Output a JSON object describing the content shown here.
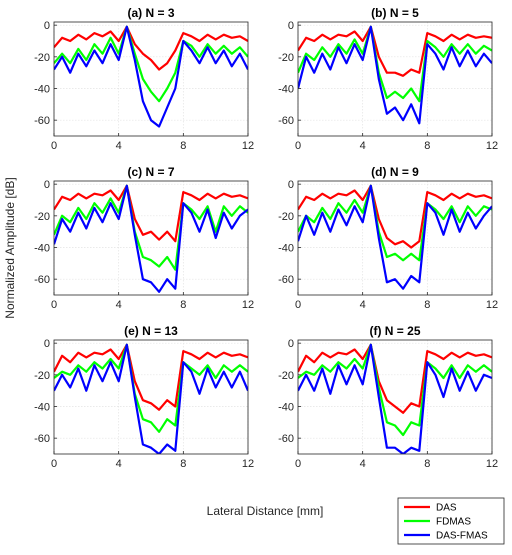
{
  "figure": {
    "ylabel": "Normalized Amplitude [dB]",
    "xlabel": "Lateral Distance [mm]"
  },
  "legend": {
    "placement": "bottom-right",
    "items": [
      {
        "label": "DAS",
        "color": "#ff0000"
      },
      {
        "label": "FDMAS",
        "color": "#00ff00"
      },
      {
        "label": "DAS-FMAS",
        "color": "#0000ff"
      }
    ]
  },
  "chart_data": [
    {
      "type": "line",
      "title": "(a) N = 3",
      "xlim": [
        0,
        12
      ],
      "ylim": [
        -70,
        2
      ],
      "xticks": [
        0,
        4,
        8,
        12
      ],
      "yticks": [
        0,
        -20,
        -40,
        -60
      ],
      "grid": true,
      "x": [
        0,
        0.5,
        1,
        1.5,
        2,
        2.5,
        3,
        3.5,
        4,
        4.5,
        5,
        5.5,
        6,
        6.5,
        7,
        7.5,
        8,
        8.5,
        9,
        9.5,
        10,
        10.5,
        11,
        11.5,
        12
      ],
      "series": [
        {
          "name": "DAS",
          "color": "#ff0000",
          "values": [
            -14,
            -8,
            -10,
            -6,
            -9,
            -5,
            -7,
            -4,
            -10,
            -1,
            -12,
            -18,
            -22,
            -28,
            -24,
            -16,
            -5,
            -7,
            -10,
            -6,
            -9,
            -6,
            -8,
            -7,
            -10
          ]
        },
        {
          "name": "FDMAS",
          "color": "#00ff00",
          "values": [
            -24,
            -18,
            -24,
            -15,
            -22,
            -12,
            -18,
            -8,
            -18,
            -1,
            -18,
            -34,
            -42,
            -48,
            -40,
            -30,
            -10,
            -13,
            -20,
            -12,
            -18,
            -13,
            -18,
            -14,
            -20
          ]
        },
        {
          "name": "DAS-FMAS",
          "color": "#0000ff",
          "values": [
            -28,
            -20,
            -30,
            -18,
            -26,
            -16,
            -24,
            -12,
            -22,
            -1,
            -22,
            -48,
            -60,
            -64,
            -52,
            -40,
            -10,
            -16,
            -24,
            -14,
            -24,
            -16,
            -26,
            -18,
            -28
          ]
        }
      ]
    },
    {
      "type": "line",
      "title": "(b) N = 5",
      "xlim": [
        0,
        12
      ],
      "ylim": [
        -70,
        2
      ],
      "xticks": [
        0,
        4,
        8,
        12
      ],
      "yticks": [
        0,
        -20,
        -40,
        -60
      ],
      "grid": true,
      "x": [
        0,
        0.5,
        1,
        1.5,
        2,
        2.5,
        3,
        3.5,
        4,
        4.5,
        5,
        5.5,
        6,
        6.5,
        7,
        7.5,
        8,
        8.5,
        9,
        9.5,
        10,
        10.5,
        11,
        11.5,
        12
      ],
      "series": [
        {
          "name": "DAS",
          "color": "#ff0000",
          "values": [
            -16,
            -8,
            -10,
            -6,
            -9,
            -6,
            -7,
            -4,
            -10,
            -1,
            -20,
            -30,
            -30,
            -32,
            -28,
            -30,
            -5,
            -7,
            -10,
            -6,
            -9,
            -6,
            -8,
            -7,
            -8
          ]
        },
        {
          "name": "FDMAS",
          "color": "#00ff00",
          "values": [
            -30,
            -18,
            -22,
            -14,
            -20,
            -12,
            -18,
            -9,
            -18,
            -1,
            -30,
            -46,
            -42,
            -46,
            -40,
            -48,
            -10,
            -14,
            -20,
            -12,
            -18,
            -12,
            -18,
            -13,
            -16
          ]
        },
        {
          "name": "DAS-FMAS",
          "color": "#0000ff",
          "values": [
            -40,
            -20,
            -30,
            -18,
            -28,
            -14,
            -24,
            -12,
            -22,
            -1,
            -34,
            -56,
            -52,
            -60,
            -50,
            -62,
            -12,
            -18,
            -28,
            -14,
            -26,
            -16,
            -26,
            -18,
            -24
          ]
        }
      ]
    },
    {
      "type": "line",
      "title": "(c) N = 7",
      "xlim": [
        0,
        12
      ],
      "ylim": [
        -70,
        2
      ],
      "xticks": [
        0,
        4,
        8,
        12
      ],
      "yticks": [
        0,
        -20,
        -40,
        -60
      ],
      "grid": true,
      "x": [
        0,
        0.5,
        1,
        1.5,
        2,
        2.5,
        3,
        3.5,
        4,
        4.5,
        5,
        5.5,
        6,
        6.5,
        7,
        7.5,
        8,
        8.5,
        9,
        9.5,
        10,
        10.5,
        11,
        11.5,
        12
      ],
      "series": [
        {
          "name": "DAS",
          "color": "#ff0000",
          "values": [
            -16,
            -8,
            -10,
            -6,
            -9,
            -6,
            -7,
            -4,
            -10,
            -1,
            -22,
            -32,
            -30,
            -35,
            -30,
            -36,
            -5,
            -7,
            -10,
            -6,
            -9,
            -6,
            -8,
            -7,
            -9
          ]
        },
        {
          "name": "FDMAS",
          "color": "#00ff00",
          "values": [
            -32,
            -20,
            -24,
            -15,
            -22,
            -12,
            -18,
            -9,
            -18,
            -1,
            -30,
            -46,
            -48,
            -52,
            -46,
            -54,
            -12,
            -16,
            -22,
            -14,
            -30,
            -14,
            -20,
            -14,
            -18
          ]
        },
        {
          "name": "DAS-FMAS",
          "color": "#0000ff",
          "values": [
            -38,
            -22,
            -30,
            -18,
            -28,
            -15,
            -24,
            -12,
            -22,
            -1,
            -32,
            -60,
            -62,
            -68,
            -60,
            -66,
            -12,
            -18,
            -30,
            -16,
            -34,
            -18,
            -28,
            -20,
            -16
          ]
        }
      ]
    },
    {
      "type": "line",
      "title": "(d) N = 9",
      "xlim": [
        0,
        12
      ],
      "ylim": [
        -70,
        2
      ],
      "xticks": [
        0,
        4,
        8,
        12
      ],
      "yticks": [
        0,
        -20,
        -40,
        -60
      ],
      "grid": true,
      "x": [
        0,
        0.5,
        1,
        1.5,
        2,
        2.5,
        3,
        3.5,
        4,
        4.5,
        5,
        5.5,
        6,
        6.5,
        7,
        7.5,
        8,
        8.5,
        9,
        9.5,
        10,
        10.5,
        11,
        11.5,
        12
      ],
      "series": [
        {
          "name": "DAS",
          "color": "#ff0000",
          "values": [
            -16,
            -8,
            -10,
            -6,
            -9,
            -6,
            -7,
            -4,
            -10,
            -1,
            -22,
            -34,
            -38,
            -36,
            -40,
            -36,
            -5,
            -7,
            -10,
            -6,
            -9,
            -6,
            -8,
            -7,
            -9
          ]
        },
        {
          "name": "FDMAS",
          "color": "#00ff00",
          "values": [
            -30,
            -20,
            -24,
            -15,
            -22,
            -12,
            -18,
            -10,
            -18,
            -1,
            -30,
            -46,
            -44,
            -48,
            -44,
            -48,
            -12,
            -16,
            -22,
            -14,
            -24,
            -14,
            -20,
            -14,
            -16
          ]
        },
        {
          "name": "DAS-FMAS",
          "color": "#0000ff",
          "values": [
            -36,
            -20,
            -32,
            -18,
            -30,
            -16,
            -26,
            -14,
            -24,
            -1,
            -34,
            -62,
            -60,
            -66,
            -58,
            -62,
            -12,
            -18,
            -32,
            -16,
            -30,
            -18,
            -28,
            -20,
            -14
          ]
        }
      ]
    },
    {
      "type": "line",
      "title": "(e) N = 13",
      "xlim": [
        0,
        12
      ],
      "ylim": [
        -70,
        2
      ],
      "xticks": [
        0,
        4,
        8,
        12
      ],
      "yticks": [
        0,
        -20,
        -40,
        -60
      ],
      "grid": true,
      "x": [
        0,
        0.5,
        1,
        1.5,
        2,
        2.5,
        3,
        3.5,
        4,
        4.5,
        5,
        5.5,
        6,
        6.5,
        7,
        7.5,
        8,
        8.5,
        9,
        9.5,
        10,
        10.5,
        11,
        11.5,
        12
      ],
      "series": [
        {
          "name": "DAS",
          "color": "#ff0000",
          "values": [
            -18,
            -8,
            -12,
            -6,
            -9,
            -6,
            -7,
            -4,
            -10,
            -1,
            -24,
            -36,
            -38,
            -42,
            -36,
            -40,
            -5,
            -7,
            -10,
            -6,
            -9,
            -6,
            -8,
            -7,
            -9
          ]
        },
        {
          "name": "FDMAS",
          "color": "#00ff00",
          "values": [
            -22,
            -18,
            -20,
            -14,
            -18,
            -12,
            -16,
            -10,
            -16,
            -1,
            -32,
            -48,
            -50,
            -56,
            -48,
            -52,
            -12,
            -16,
            -20,
            -14,
            -22,
            -14,
            -18,
            -14,
            -18
          ]
        },
        {
          "name": "DAS-FMAS",
          "color": "#0000ff",
          "values": [
            -30,
            -20,
            -28,
            -16,
            -30,
            -14,
            -24,
            -12,
            -24,
            -1,
            -34,
            -64,
            -66,
            -70,
            -64,
            -68,
            -12,
            -18,
            -32,
            -16,
            -28,
            -18,
            -28,
            -18,
            -30
          ]
        }
      ]
    },
    {
      "type": "line",
      "title": "(f) N = 25",
      "xlim": [
        0,
        12
      ],
      "ylim": [
        -70,
        2
      ],
      "xticks": [
        0,
        4,
        8,
        12
      ],
      "yticks": [
        0,
        -20,
        -40,
        -60
      ],
      "grid": true,
      "x": [
        0,
        0.5,
        1,
        1.5,
        2,
        2.5,
        3,
        3.5,
        4,
        4.5,
        5,
        5.5,
        6,
        6.5,
        7,
        7.5,
        8,
        8.5,
        9,
        9.5,
        10,
        10.5,
        11,
        11.5,
        12
      ],
      "series": [
        {
          "name": "DAS",
          "color": "#ff0000",
          "values": [
            -18,
            -8,
            -12,
            -6,
            -9,
            -6,
            -7,
            -4,
            -10,
            -1,
            -24,
            -36,
            -40,
            -44,
            -38,
            -40,
            -5,
            -7,
            -10,
            -6,
            -9,
            -6,
            -8,
            -7,
            -9
          ]
        },
        {
          "name": "FDMAS",
          "color": "#00ff00",
          "values": [
            -22,
            -18,
            -20,
            -14,
            -18,
            -12,
            -16,
            -10,
            -16,
            -1,
            -28,
            -50,
            -52,
            -58,
            -50,
            -52,
            -12,
            -16,
            -22,
            -14,
            -22,
            -14,
            -18,
            -14,
            -18
          ]
        },
        {
          "name": "DAS-FMAS",
          "color": "#0000ff",
          "values": [
            -30,
            -20,
            -30,
            -16,
            -32,
            -14,
            -26,
            -14,
            -26,
            -1,
            -34,
            -66,
            -66,
            -70,
            -66,
            -68,
            -12,
            -20,
            -34,
            -16,
            -30,
            -18,
            -30,
            -20,
            -22
          ]
        }
      ]
    }
  ]
}
